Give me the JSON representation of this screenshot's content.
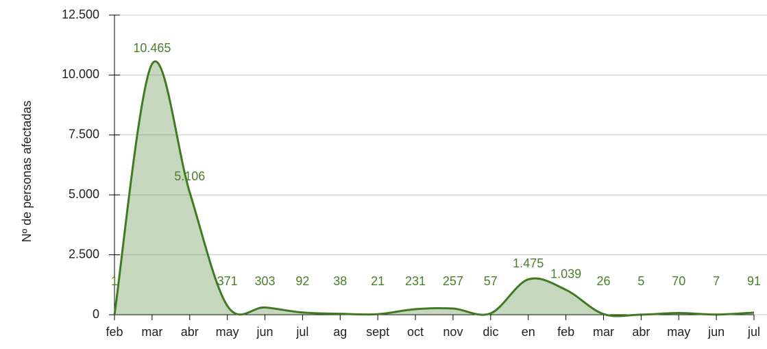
{
  "chart_data": {
    "type": "area",
    "y_label": "Nº de personas afectadas",
    "categories": [
      "feb",
      "mar",
      "abr",
      "may",
      "jun",
      "jul",
      "ag",
      "sept",
      "oct",
      "nov",
      "dic",
      "en",
      "feb",
      "mar",
      "abr",
      "may",
      "jun",
      "jul"
    ],
    "values": [
      1,
      10465,
      5106,
      371,
      303,
      92,
      38,
      21,
      231,
      257,
      57,
      1475,
      1039,
      26,
      5,
      70,
      7,
      91
    ],
    "value_labels": [
      "1",
      "10.465",
      "5.106",
      "371",
      "303",
      "92",
      "38",
      "21",
      "231",
      "257",
      "57",
      "1.475",
      "1.039",
      "26",
      "5",
      "70",
      "7",
      "91"
    ],
    "color": "#3f7a22",
    "ylim": [
      0,
      12500
    ],
    "yticks": [
      0,
      {
        "value": 2500,
        "label": "2.500"
      },
      {
        "value": 5000,
        "label": "5.000"
      },
      {
        "value": 7500,
        "label": "7.500"
      },
      {
        "value": 10000,
        "label": "10.000"
      },
      {
        "value": 12500,
        "label": "12.500"
      }
    ],
    "grid": true
  }
}
